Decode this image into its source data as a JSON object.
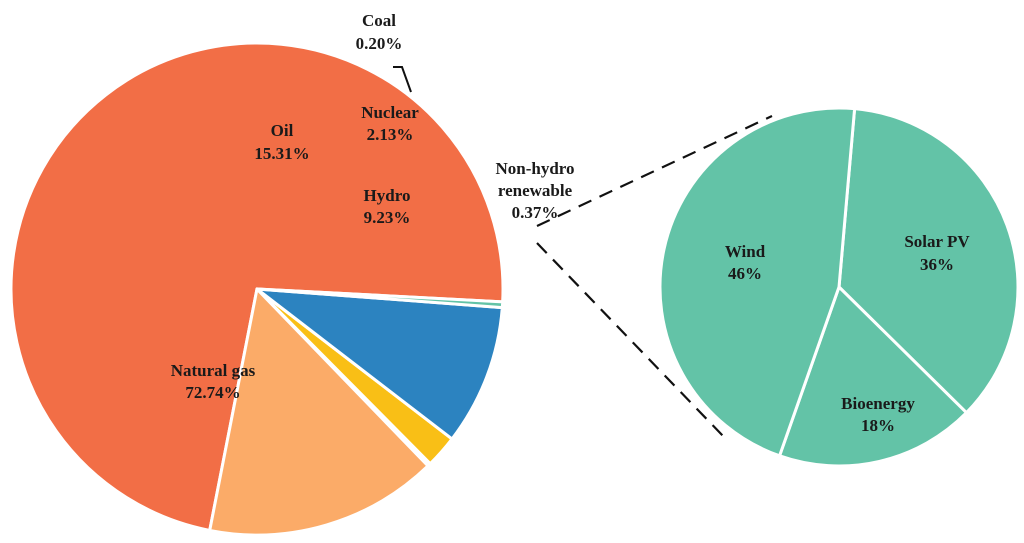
{
  "chart_data": [
    {
      "type": "pie",
      "title": "",
      "slices": [
        {
          "name": "Natural gas",
          "value": 72.74,
          "label": "72.74%",
          "color": "#F26E46"
        },
        {
          "name": "Oil",
          "value": 15.31,
          "label": "15.31%",
          "color": "#FBAB68"
        },
        {
          "name": "Coal",
          "value": 0.2,
          "label": "0.20%",
          "color": "#2F2F2F"
        },
        {
          "name": "Nuclear",
          "value": 2.13,
          "label": "2.13%",
          "color": "#F9BF16"
        },
        {
          "name": "Hydro",
          "value": 9.23,
          "label": "9.23%",
          "color": "#2C83C0"
        },
        {
          "name": "Non-hydro renewable",
          "display_name": [
            "Non-hydro",
            "renewable"
          ],
          "value": 0.37,
          "label": "0.37%",
          "color": "#63C3A7"
        }
      ]
    },
    {
      "type": "pie",
      "title": "",
      "breakdown_of": "Non-hydro renewable",
      "slices": [
        {
          "name": "Solar PV",
          "value": 36,
          "label": "36%",
          "color": "#63C3A7"
        },
        {
          "name": "Bioenergy",
          "value": 18,
          "label": "18%",
          "color": "#63C3A7"
        },
        {
          "name": "Wind",
          "value": 46,
          "label": "46%",
          "color": "#63C3A7"
        }
      ]
    }
  ]
}
